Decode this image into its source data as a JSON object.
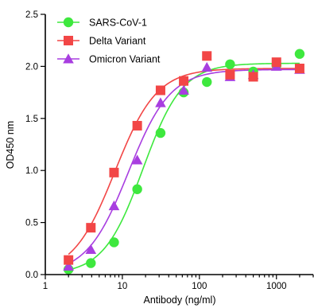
{
  "chart_data": {
    "type": "scatter",
    "title": "",
    "xlabel": "Antibody (ng/ml)",
    "ylabel": "OD450 nm",
    "xscale": "log",
    "xlim": [
      1,
      3000
    ],
    "ylim": [
      0,
      2.5
    ],
    "xticks": [
      1,
      10,
      100,
      1000
    ],
    "xtick_labels": [
      "1",
      "10",
      "100",
      "1000"
    ],
    "yticks": [
      0,
      0.5,
      1.0,
      1.5,
      2.0,
      2.5
    ],
    "ytick_labels": [
      "0.0",
      "0.5",
      "1.0",
      "1.5",
      "2.0",
      "2.5"
    ],
    "grid": false,
    "legend_position": "top-left",
    "x": [
      2,
      3.9,
      7.8,
      15.6,
      31.3,
      62.5,
      125,
      250,
      500,
      1000,
      2000
    ],
    "series": [
      {
        "name": "SARS-CoV-1",
        "marker": "circle",
        "color": "#3ee83e",
        "values": [
          0.05,
          0.11,
          0.31,
          0.82,
          1.36,
          1.75,
          1.85,
          2.02,
          1.95,
          2.01,
          2.12
        ],
        "fit": {
          "bottom": 0.0,
          "top": 2.03,
          "ec50": 18.5,
          "hill": 1.7
        }
      },
      {
        "name": "Delta Variant",
        "marker": "square",
        "color": "#f24646",
        "values": [
          0.14,
          0.45,
          0.98,
          1.43,
          1.77,
          1.86,
          2.1,
          1.92,
          1.9,
          2.04,
          1.98
        ],
        "fit": {
          "bottom": 0.0,
          "top": 1.98,
          "ec50": 8.0,
          "hill": 1.6
        }
      },
      {
        "name": "Omicron Variant",
        "marker": "triangle",
        "color": "#a83ee0",
        "values": [
          0.08,
          0.24,
          0.66,
          1.1,
          1.65,
          1.77,
          1.99,
          1.9,
          1.92,
          2.0,
          1.97
        ],
        "fit": {
          "bottom": 0.0,
          "top": 1.97,
          "ec50": 12.0,
          "hill": 1.6
        }
      }
    ]
  }
}
